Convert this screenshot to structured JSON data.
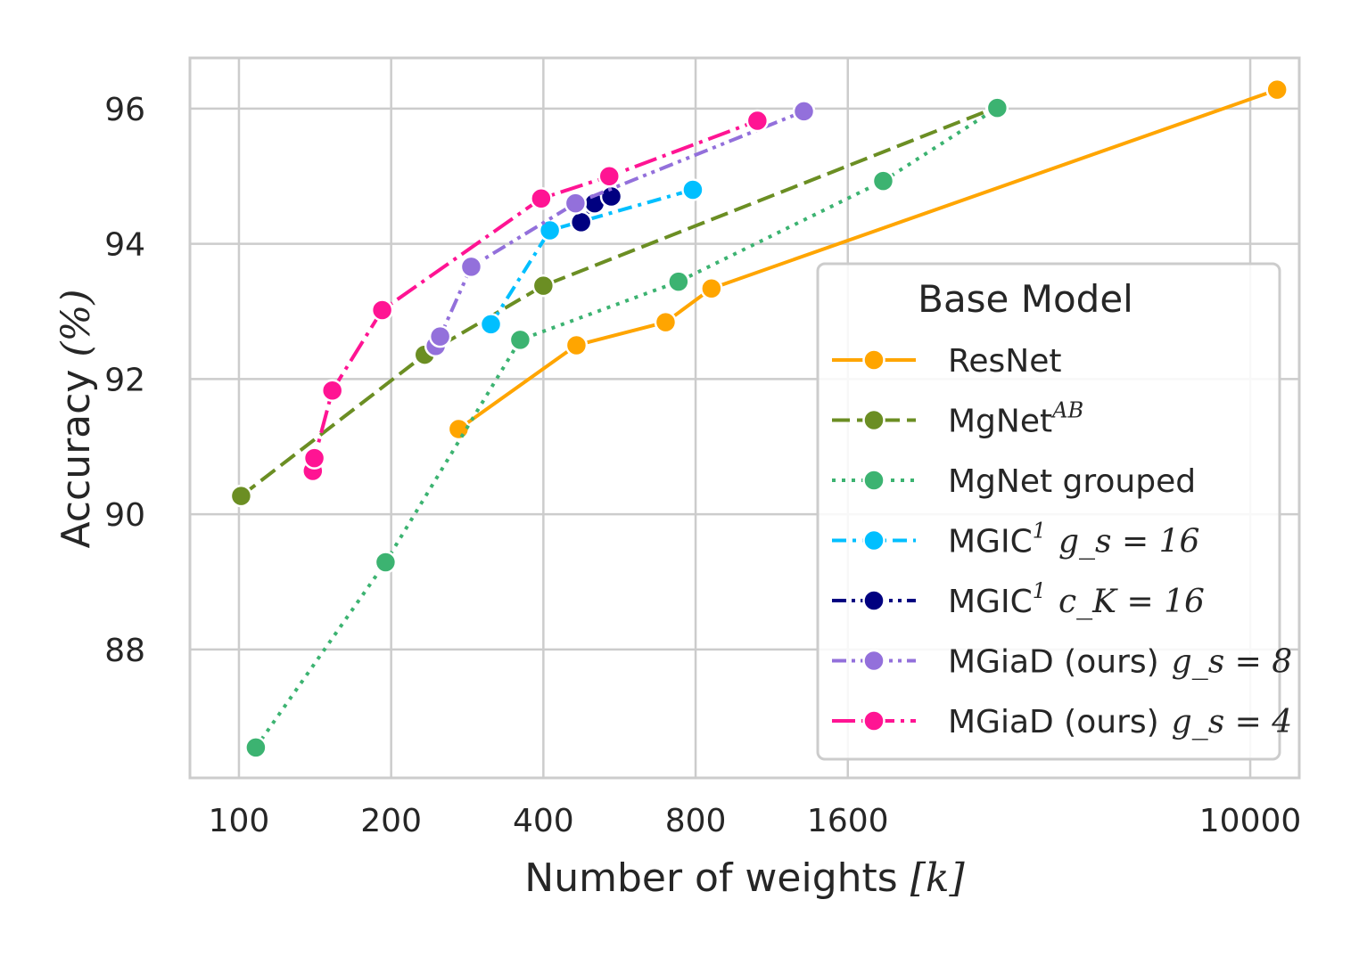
{
  "chart_data": {
    "type": "line",
    "title": "",
    "xlabel": "Number of weights",
    "xlabel_unit": "[k]",
    "ylabel": "Accuracy",
    "ylabel_unit": "(%)",
    "xscale": "log",
    "xlim": [
      80,
      12500
    ],
    "ylim": [
      86.1,
      96.75
    ],
    "xticks": [
      {
        "value": 100,
        "label": "100"
      },
      {
        "value": 200,
        "label": "200"
      },
      {
        "value": 400,
        "label": "400"
      },
      {
        "value": 800,
        "label": "800"
      },
      {
        "value": 1600,
        "label": "1600"
      },
      {
        "value": 10000,
        "label": "10000"
      }
    ],
    "yticks": [
      {
        "value": 88,
        "label": "88"
      },
      {
        "value": 90,
        "label": "90"
      },
      {
        "value": 92,
        "label": "92"
      },
      {
        "value": 94,
        "label": "94"
      },
      {
        "value": 96,
        "label": "96"
      }
    ],
    "grid": true,
    "legend": {
      "title": "Base Model",
      "placement": "lower-right"
    },
    "series": [
      {
        "name": "ResNet",
        "legend_label": {
          "main": "ResNet",
          "sup": "",
          "math": ""
        },
        "color": "#FFA500",
        "dash": "solid",
        "x": [
          272,
          465,
          698,
          860,
          11300
        ],
        "y": [
          91.26,
          92.5,
          92.84,
          93.34,
          96.28
        ]
      },
      {
        "name": "MgNetAB",
        "legend_label": {
          "main": "MgNet",
          "sup": "AB",
          "math": ""
        },
        "color": "#6B8E23",
        "dash": "dashed",
        "x": [
          101,
          233,
          400,
          3150
        ],
        "y": [
          90.27,
          92.36,
          93.38,
          96.02
        ]
      },
      {
        "name": "MgNet grouped",
        "legend_label": {
          "main": "MgNet grouped",
          "sup": "",
          "math": ""
        },
        "color": "#3CB371",
        "dash": "dotted",
        "x": [
          108,
          195,
          360,
          740,
          1880,
          3160
        ],
        "y": [
          86.55,
          89.29,
          92.58,
          93.44,
          94.93,
          96.01
        ]
      },
      {
        "name": "MGIC1 gs=16",
        "legend_label": {
          "main": "MGIC",
          "sup": "1",
          "math": "g_s = 16"
        },
        "color": "#00BFFF",
        "dash": "dashdot",
        "x": [
          315,
          412,
          790
        ],
        "y": [
          92.81,
          94.2,
          94.8
        ]
      },
      {
        "name": "MGIC1 cK=16",
        "legend_label": {
          "main": "MGIC",
          "sup": "1",
          "math": "c_K = 16"
        },
        "color": "#000080",
        "dash": "dashdotdot",
        "x": [
          475,
          505,
          545
        ],
        "y": [
          94.32,
          94.6,
          94.7
        ]
      },
      {
        "name": "MGiaD (ours) gs=8",
        "legend_label": {
          "main": "MGiaD (ours)",
          "sup": "",
          "math": "g_s = 8"
        },
        "color": "#9370DB",
        "dash": "dashdotdot",
        "x": [
          245,
          250,
          288,
          463,
          1310
        ],
        "y": [
          92.49,
          92.63,
          93.66,
          94.6,
          95.96
        ]
      },
      {
        "name": "MGiaD (ours) gs=4",
        "legend_label": {
          "main": "MGiaD (ours)",
          "sup": "",
          "math": "g_s = 4"
        },
        "color": "#FF1493",
        "dash": "longdashdot",
        "x": [
          140,
          141,
          153,
          192,
          396,
          540,
          1060
        ],
        "y": [
          90.64,
          90.83,
          91.83,
          93.02,
          94.67,
          95.0,
          95.82
        ]
      }
    ]
  }
}
